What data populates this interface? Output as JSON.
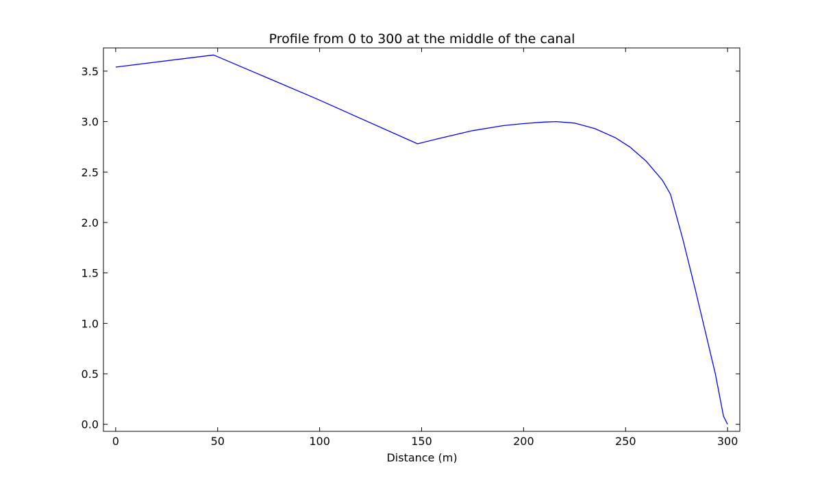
{
  "chart_data": {
    "type": "line",
    "title": "Profile from 0 to 300 at the middle of the canal",
    "xlabel": "Distance (m)",
    "ylabel": "",
    "xlim": [
      -6,
      306
    ],
    "ylim": [
      -0.07,
      3.73
    ],
    "xticks": [
      0,
      50,
      100,
      150,
      200,
      250,
      300
    ],
    "yticks": [
      0.0,
      0.5,
      1.0,
      1.5,
      2.0,
      2.5,
      3.0,
      3.5
    ],
    "xtick_labels": [
      "0",
      "50",
      "100",
      "150",
      "200",
      "250",
      "300"
    ],
    "ytick_labels": [
      "0.0",
      "0.5",
      "1.0",
      "1.5",
      "2.0",
      "2.5",
      "3.0",
      "3.5"
    ],
    "grid": false,
    "legend": "none",
    "series": [
      {
        "color": "#0000ff",
        "x": [
          0,
          48,
          98,
          148,
          160,
          175,
          190,
          200,
          210,
          216,
          225,
          235,
          245,
          252,
          260,
          268,
          272,
          278,
          284,
          290,
          294,
          298,
          300
        ],
        "y": [
          3.54,
          3.66,
          3.23,
          2.78,
          2.84,
          2.91,
          2.96,
          2.98,
          2.995,
          3.0,
          2.985,
          2.93,
          2.84,
          2.75,
          2.61,
          2.42,
          2.28,
          1.84,
          1.35,
          0.84,
          0.5,
          0.08,
          0.0
        ]
      }
    ]
  }
}
